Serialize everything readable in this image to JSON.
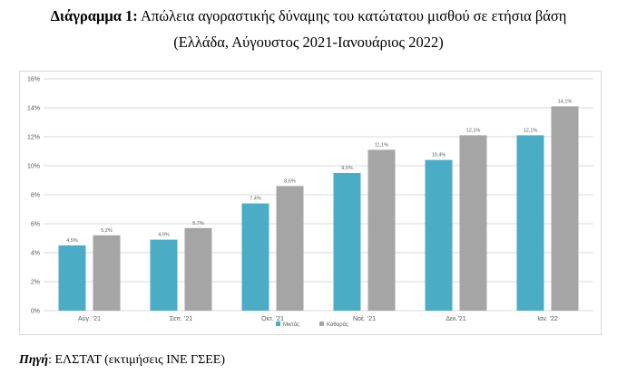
{
  "title": {
    "lead": "Διάγραμμα 1:",
    "text": "Απώλεια αγοραστικής δύναμης του κατώτατου μισθού σε ετήσια βάση",
    "subtitle": "(Ελλάδα, Αύγουστος 2021-Ιανουάριος 2022)"
  },
  "source": {
    "label": "Πηγή",
    "text": ": ΕΛΣΤΑΤ (εκτιμήσεις ΙΝΕ ΓΣΕΕ)"
  },
  "colors": {
    "series1": "#4bacc6",
    "series2": "#a5a5a5",
    "grid": "#d9d9d9",
    "axis_text": "#595959"
  },
  "chart_data": {
    "type": "bar",
    "categories": [
      "Αύγ. '21",
      "Σεπ. '21",
      "Οκτ. '21",
      "Νοέ. '21",
      "Δεκ.'21",
      "Ιαν. '22"
    ],
    "series": [
      {
        "name": "Μικτός",
        "values": [
          4.5,
          4.9,
          7.4,
          9.5,
          10.4,
          12.1
        ],
        "labels": [
          "4,5%",
          "4,9%",
          "7,4%",
          "9,5%",
          "10,4%",
          "12,1%"
        ]
      },
      {
        "name": "Καθαρός",
        "values": [
          5.2,
          5.7,
          8.6,
          11.1,
          12.1,
          14.1
        ],
        "labels": [
          "5,2%",
          "5,7%",
          "8,6%",
          "11,1%",
          "12,1%",
          "14,1%"
        ]
      }
    ],
    "ylim": [
      0,
      16
    ],
    "yticks": [
      0,
      2,
      4,
      6,
      8,
      10,
      12,
      14,
      16
    ],
    "ytick_labels": [
      "0%",
      "2%",
      "4%",
      "6%",
      "8%",
      "10%",
      "12%",
      "14%",
      "16%"
    ],
    "grid": true,
    "legend": "bottom"
  }
}
